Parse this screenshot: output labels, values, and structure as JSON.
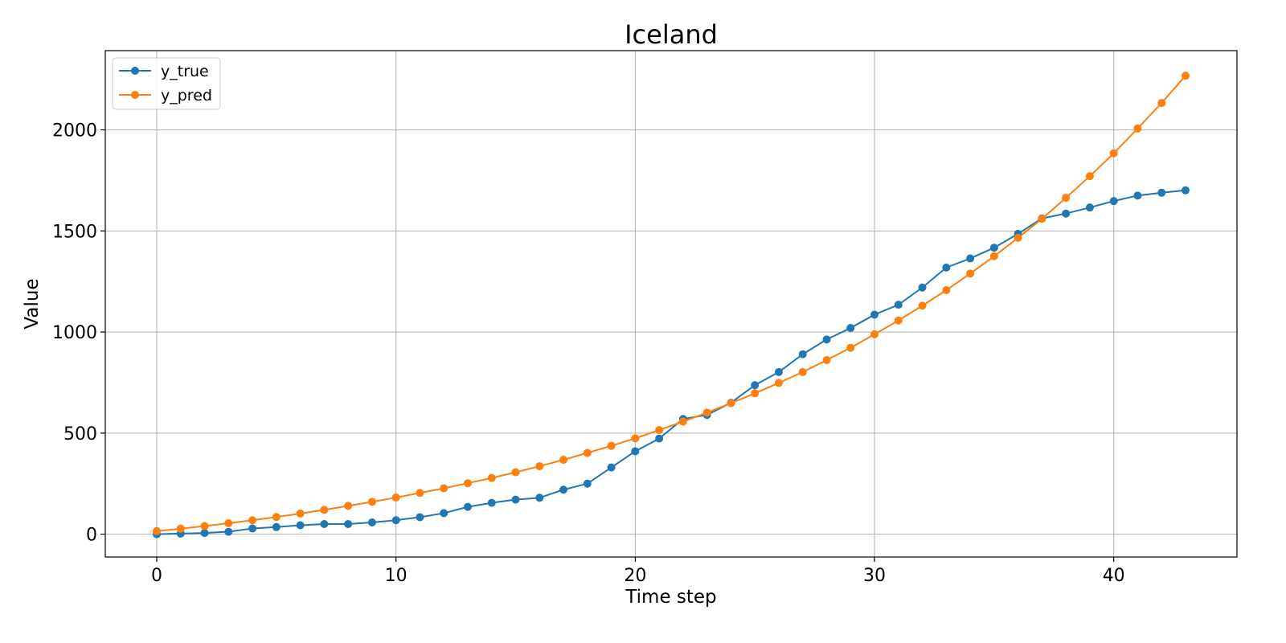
{
  "chart_data": {
    "type": "line",
    "title": "Iceland",
    "xlabel": "Time step",
    "ylabel": "Value",
    "xlim": [
      -2.15,
      45.15
    ],
    "ylim": [
      -113,
      2392
    ],
    "xticks": [
      0,
      10,
      20,
      30,
      40
    ],
    "yticks": [
      0,
      500,
      1000,
      1500,
      2000
    ],
    "grid": true,
    "legend_position": "top-left",
    "x": [
      0,
      1,
      2,
      3,
      4,
      5,
      6,
      7,
      8,
      9,
      10,
      11,
      12,
      13,
      14,
      15,
      16,
      17,
      18,
      19,
      20,
      21,
      22,
      23,
      24,
      25,
      26,
      27,
      28,
      29,
      30,
      31,
      32,
      33,
      34,
      35,
      36,
      37,
      38,
      39,
      40,
      41,
      42,
      43
    ],
    "series": [
      {
        "name": "y_true",
        "color": "#1f77b4",
        "values": [
          0,
          3,
          6,
          12,
          28,
          35,
          44,
          50,
          50,
          58,
          69,
          84,
          104,
          135,
          155,
          171,
          180,
          220,
          250,
          330,
          410,
          473,
          570,
          590,
          650,
          737,
          802,
          890,
          963,
          1020,
          1086,
          1135,
          1220,
          1319,
          1364,
          1417,
          1486,
          1562,
          1586,
          1616,
          1648,
          1675,
          1689,
          1701
        ]
      },
      {
        "name": "y_pred",
        "color": "#ff7f0e",
        "values": [
          15,
          27,
          40,
          54,
          69,
          85,
          102,
          120,
          140,
          160,
          181,
          204,
          227,
          252,
          278,
          306,
          336,
          368,
          402,
          437,
          474,
          515,
          557,
          601,
          648,
          697,
          748,
          802,
          861,
          922,
          989,
          1057,
          1130,
          1207,
          1289,
          1375,
          1466,
          1560,
          1664,
          1771,
          1884,
          2007,
          2133,
          2268
        ]
      }
    ]
  }
}
